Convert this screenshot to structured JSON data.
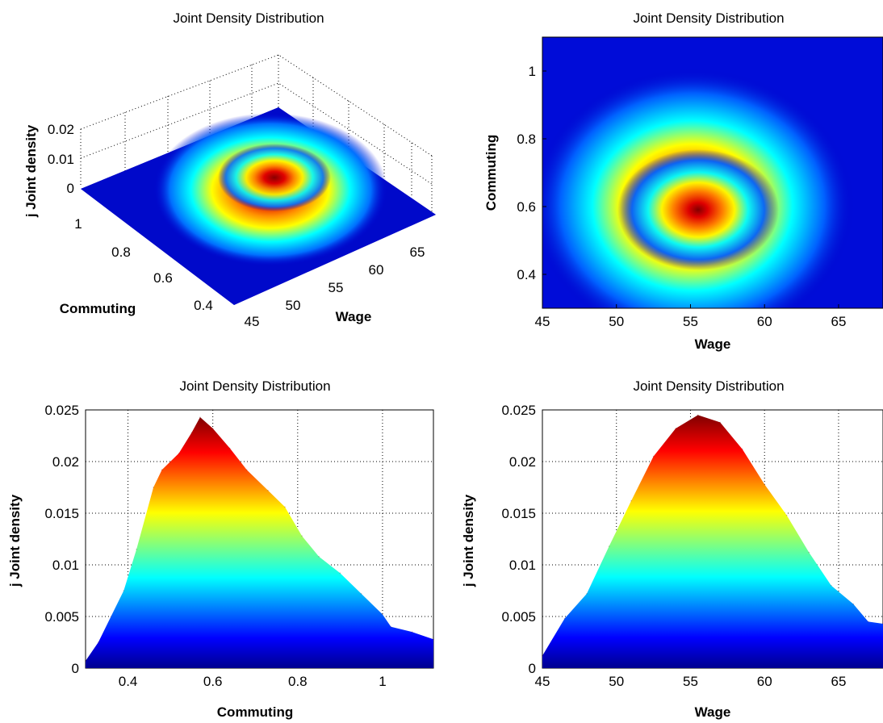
{
  "colors": {
    "colormap": "jet",
    "background": "#ffffff",
    "surface_low": "#00008f",
    "surface_high": "#800000"
  },
  "chart_data": [
    {
      "type": "heatmap",
      "view": "3d-surface",
      "title": "Joint Density Distribution",
      "xlabel": "Wage",
      "ylabel": "Commuting",
      "zlabel": "j Joint density",
      "xticks": [
        "45",
        "50",
        "55",
        "60",
        "65"
      ],
      "yticks": [
        "0.4",
        "0.6",
        "0.8",
        "1"
      ],
      "zticks": [
        "0",
        "0.01",
        "0.02"
      ],
      "xlim": [
        45,
        68
      ],
      "ylim": [
        0.3,
        1.1
      ],
      "zlim": [
        0,
        0.025
      ],
      "peak": {
        "x": 55.5,
        "y": 0.58,
        "z": 0.0245
      },
      "grid": true
    },
    {
      "type": "heatmap",
      "view": "top",
      "title": "Joint Density Distribution",
      "xlabel": "Wage",
      "ylabel": "Commuting",
      "xticks": [
        "45",
        "50",
        "55",
        "60",
        "65"
      ],
      "yticks": [
        "0.4",
        "0.6",
        "0.8",
        "1"
      ],
      "xlim": [
        45,
        68
      ],
      "ylim": [
        0.3,
        1.1
      ],
      "peak": {
        "x": 55.5,
        "y": 0.58,
        "z": 0.0245
      },
      "grid": false
    },
    {
      "type": "area",
      "view": "side-commuting",
      "title": "Joint Density Distribution",
      "xlabel": "Commuting",
      "ylabel": "j Joint density",
      "xticks": [
        "0.4",
        "0.6",
        "0.8",
        "1"
      ],
      "yticks": [
        "0",
        "0.005",
        "0.01",
        "0.015",
        "0.02",
        "0.025"
      ],
      "xlim": [
        0.3,
        1.12
      ],
      "ylim": [
        0,
        0.025
      ],
      "x": [
        0.3,
        0.33,
        0.36,
        0.39,
        0.42,
        0.46,
        0.48,
        0.52,
        0.55,
        0.57,
        0.6,
        0.64,
        0.68,
        0.73,
        0.77,
        0.81,
        0.85,
        0.9,
        0.95,
        1.0,
        1.02,
        1.07,
        1.12
      ],
      "values": [
        0.0007,
        0.0025,
        0.005,
        0.0075,
        0.0115,
        0.0175,
        0.0192,
        0.0208,
        0.0228,
        0.0243,
        0.0232,
        0.0213,
        0.0192,
        0.0172,
        0.0156,
        0.0128,
        0.0108,
        0.0092,
        0.0072,
        0.0052,
        0.004,
        0.0035,
        0.0028
      ],
      "grid": true
    },
    {
      "type": "area",
      "view": "side-wage",
      "title": "Joint Density Distribution",
      "xlabel": "Wage",
      "ylabel": "j Joint density",
      "xticks": [
        "45",
        "50",
        "55",
        "60",
        "65"
      ],
      "yticks": [
        "0",
        "0.005",
        "0.01",
        "0.015",
        "0.02",
        "0.025"
      ],
      "xlim": [
        45,
        68
      ],
      "ylim": [
        0,
        0.025
      ],
      "x": [
        45,
        46.5,
        48,
        49.5,
        51,
        52.5,
        54,
        55.5,
        57,
        58.5,
        60,
        61.5,
        63,
        64.5,
        66,
        67,
        68
      ],
      "values": [
        0.0012,
        0.0048,
        0.0072,
        0.0118,
        0.0162,
        0.0205,
        0.0232,
        0.0245,
        0.0238,
        0.0212,
        0.0178,
        0.0148,
        0.0112,
        0.008,
        0.0062,
        0.0045,
        0.0043
      ],
      "grid": true
    }
  ]
}
